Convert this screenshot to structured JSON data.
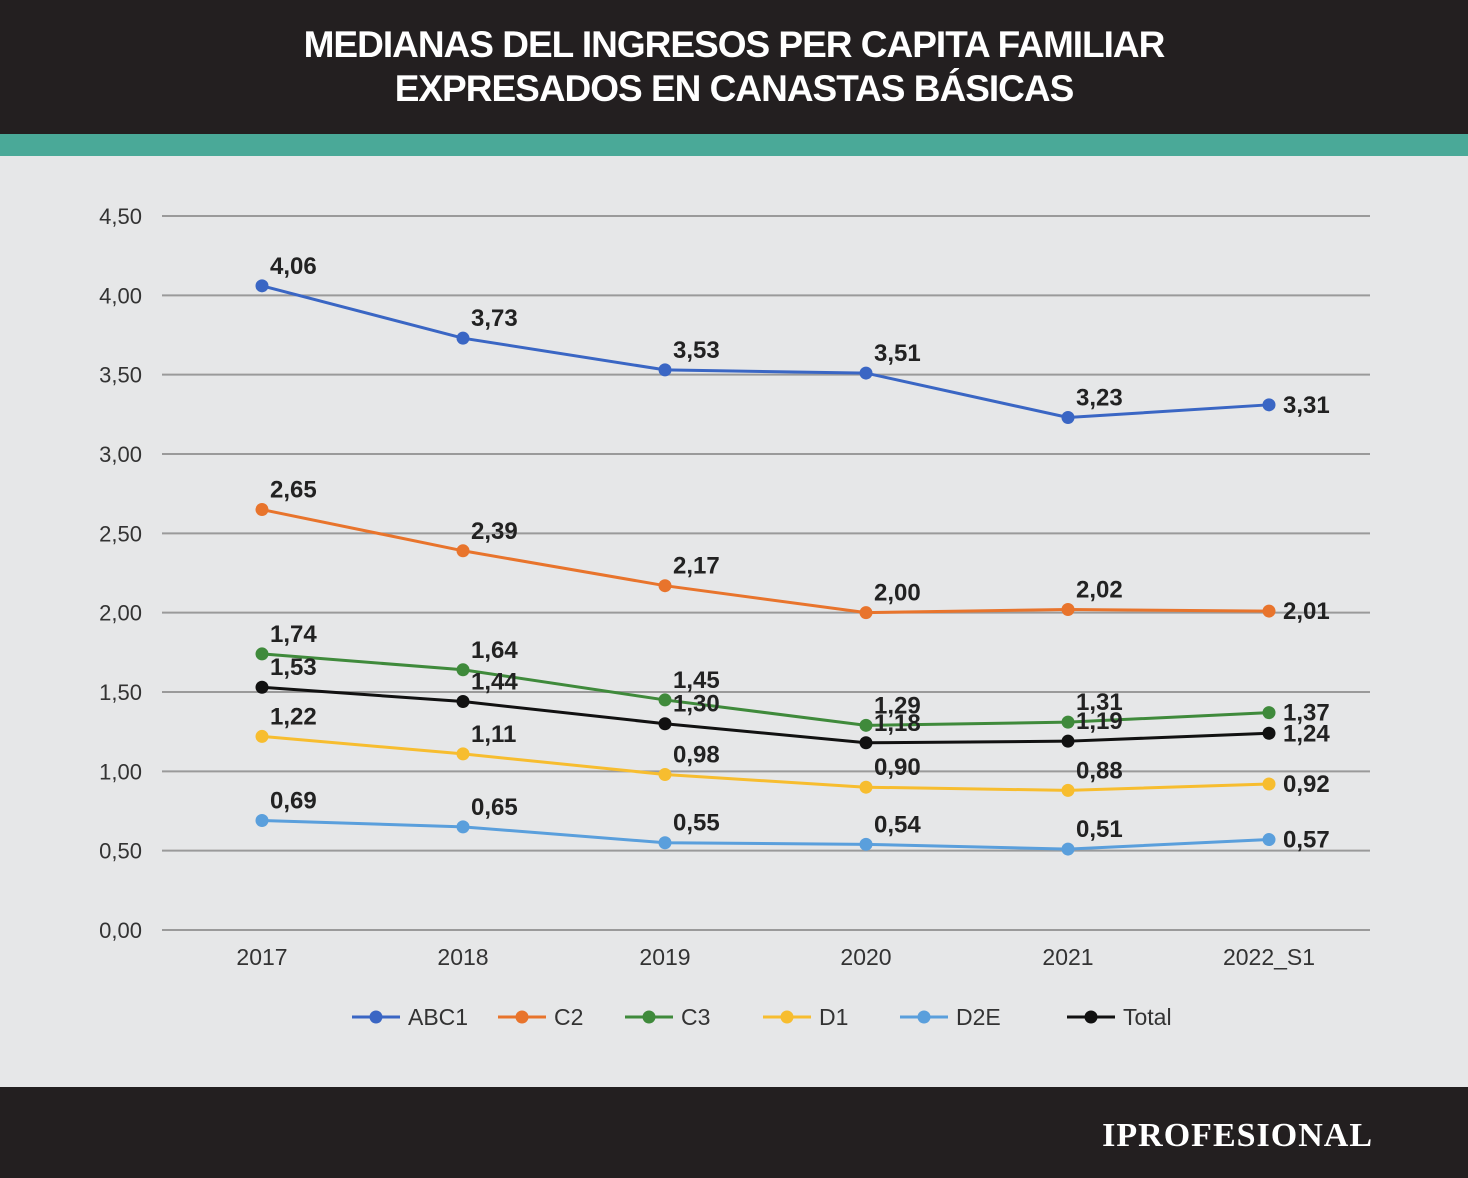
{
  "header": {
    "title_line1": "MEDIANAS DEL INGRESOS PER CAPITA FAMILIAR",
    "title_line2": "EXPRESADOS EN CANASTAS BÁSICAS"
  },
  "footer": {
    "brand": "IPROFESIONAL"
  },
  "chart_data": {
    "type": "line",
    "title": "MEDIANAS DEL INGRESOS PER CAPITA FAMILIAR EXPRESADOS EN CANASTAS BÁSICAS",
    "xlabel": "",
    "ylabel": "",
    "categories": [
      "2017",
      "2018",
      "2019",
      "2020",
      "2021",
      "2022_S1"
    ],
    "ylim": [
      0,
      4.5
    ],
    "yticks": [
      0,
      0.5,
      1,
      1.5,
      2,
      2.5,
      3,
      3.5,
      4,
      4.5
    ],
    "ytick_labels": [
      "0,00",
      "0,50",
      "1,00",
      "1,50",
      "2,00",
      "2,50",
      "3,00",
      "3,50",
      "4,00",
      "4,50"
    ],
    "grid": true,
    "legend_position": "bottom",
    "series": [
      {
        "name": "ABC1",
        "color": "#3a66c4",
        "values": [
          4.06,
          3.73,
          3.53,
          3.51,
          3.23,
          3.31
        ],
        "labels": [
          "4,06",
          "3,73",
          "3,53",
          "3,51",
          "3,23",
          "3,31"
        ]
      },
      {
        "name": "C2",
        "color": "#e8742c",
        "values": [
          2.65,
          2.39,
          2.17,
          2.0,
          2.02,
          2.01
        ],
        "labels": [
          "2,65",
          "2,39",
          "2,17",
          "2,00",
          "2,02",
          "2,01"
        ]
      },
      {
        "name": "C3",
        "color": "#3f8a3b",
        "values": [
          1.74,
          1.64,
          1.45,
          1.29,
          1.31,
          1.37
        ],
        "labels": [
          "1,74",
          "1,64",
          "1,45",
          "1,29",
          "1,31",
          "1,37"
        ]
      },
      {
        "name": "D1",
        "color": "#f7bd2f",
        "values": [
          1.22,
          1.11,
          0.98,
          0.9,
          0.88,
          0.92
        ],
        "labels": [
          "1,22",
          "1,11",
          "0,98",
          "0,90",
          "0,88",
          "0,92"
        ]
      },
      {
        "name": "D2E",
        "color": "#5a9fdc",
        "values": [
          0.69,
          0.65,
          0.55,
          0.54,
          0.51,
          0.57
        ],
        "labels": [
          "0,69",
          "0,65",
          "0,55",
          "0,54",
          "0,51",
          "0,57"
        ]
      },
      {
        "name": "Total",
        "color": "#111111",
        "values": [
          1.53,
          1.44,
          1.3,
          1.18,
          1.19,
          1.24
        ],
        "labels": [
          "1,53",
          "1,44",
          "1,30",
          "1,18",
          "1,19",
          "1,24"
        ]
      }
    ]
  }
}
